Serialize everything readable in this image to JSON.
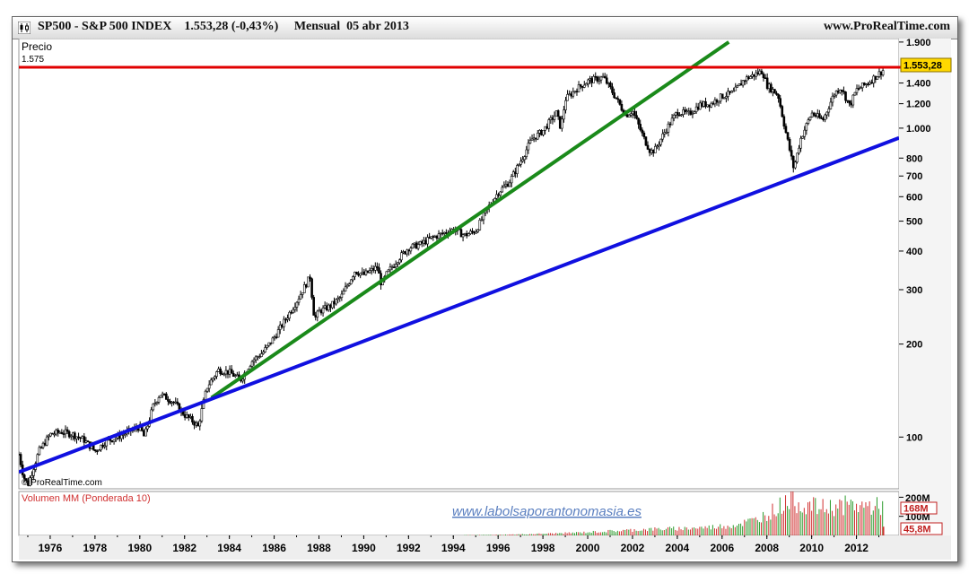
{
  "header": {
    "title": "SP500 - S&P 500 INDEX    1.553,28 (-0,43%)     Mensual  05 abr 2013",
    "site": "www.ProRealTime.com"
  },
  "price_panel": {
    "label": "Precio",
    "ref_value_label": "1.575",
    "last_label": "1.553,28",
    "credit": "© ProRealTime.com",
    "watermark": "www.labolsaporantonomasia.es"
  },
  "volume_panel": {
    "label": "Volumen MM (Ponderada 10)",
    "axis_labels": [
      "200M",
      "100M"
    ],
    "value_badges": [
      {
        "text": "168M",
        "value_millions": 168
      },
      {
        "text": "45,8M",
        "value_millions": 45.8
      }
    ]
  },
  "colors": {
    "red_line": "#e00000",
    "green_trend": "#1a8a1a",
    "blue_trend": "#1010e0",
    "price": "#000000",
    "last_badge": "#ffd800"
  },
  "chart_data": [
    {
      "type": "line",
      "title": "SP500 - S&P 500 INDEX",
      "frequency": "Mensual",
      "y_scale": "log",
      "ylim": [
        68,
        1950
      ],
      "xlim": [
        1974.6,
        2013.9
      ],
      "yticks": [
        100,
        200,
        300,
        400,
        500,
        600,
        700,
        800,
        1000,
        1200,
        1400,
        1900
      ],
      "ytick_labels": [
        "100",
        "200",
        "300",
        "400",
        "500",
        "600",
        "700",
        "800",
        "1.000",
        "1.200",
        "1.400",
        "1.900"
      ],
      "xticks": [
        1976,
        1978,
        1980,
        1982,
        1984,
        1986,
        1988,
        1990,
        1992,
        1994,
        1996,
        1998,
        2000,
        2002,
        2004,
        2006,
        2008,
        2010,
        2012
      ],
      "series": [
        {
          "x": [
            1974.6,
            1974.8,
            1975.0,
            1975.5,
            1976.0,
            1976.5,
            1977.0,
            1977.5,
            1978.0,
            1978.5,
            1979.0,
            1979.5,
            1980.0,
            1980.2,
            1980.6,
            1980.9,
            1981.5,
            1982.0,
            1982.4,
            1982.6,
            1983.0,
            1983.5,
            1984.0,
            1984.5,
            1985.0,
            1985.5,
            1986.0,
            1986.5,
            1987.0,
            1987.6,
            1987.8,
            1988.0,
            1988.5,
            1989.0,
            1989.6,
            1990.0,
            1990.6,
            1990.8,
            1991.0,
            1991.5,
            1992.0,
            1992.5,
            1993.0,
            1993.5,
            1994.0,
            1994.5,
            1995.0,
            1995.5,
            1996.0,
            1996.5,
            1997.0,
            1997.5,
            1998.0,
            1998.6,
            1998.8,
            1999.0,
            1999.5,
            2000.0,
            2000.7,
            2001.0,
            2001.7,
            2002.0,
            2002.5,
            2002.8,
            2003.0,
            2003.5,
            2004.0,
            2004.5,
            2005.0,
            2005.5,
            2006.0,
            2006.5,
            2007.0,
            2007.8,
            2008.0,
            2008.5,
            2008.9,
            2009.2,
            2009.5,
            2010.0,
            2010.5,
            2011.0,
            2011.3,
            2011.7,
            2012.0,
            2012.5,
            2013.0,
            2013.25
          ],
          "y": [
            88,
            75,
            70,
            90,
            102,
            104,
            102,
            98,
            90,
            97,
            100,
            104,
            108,
            100,
            126,
            138,
            130,
            118,
            112,
            108,
            145,
            165,
            162,
            153,
            176,
            188,
            210,
            240,
            275,
            330,
            240,
            255,
            265,
            285,
            345,
            335,
            355,
            310,
            335,
            375,
            410,
            420,
            440,
            455,
            470,
            450,
            465,
            545,
            620,
            670,
            780,
            920,
            980,
            1120,
            1000,
            1240,
            1340,
            1420,
            1460,
            1350,
            1100,
            1140,
            930,
            840,
            850,
            990,
            1130,
            1110,
            1190,
            1200,
            1270,
            1300,
            1440,
            1530,
            1380,
            1280,
            930,
            740,
            920,
            1120,
            1060,
            1290,
            1360,
            1180,
            1330,
            1400,
            1500,
            1553
          ]
        }
      ],
      "reference_lines": [
        {
          "name": "resistance",
          "y": 1575,
          "color": "#e00000"
        }
      ],
      "trendlines": [
        {
          "color": "#1a8a1a",
          "x": [
            1983.2,
            2006.3
          ],
          "y": [
            134,
            1900
          ]
        },
        {
          "color": "#1010e0",
          "x": [
            1974.6,
            2013.9
          ],
          "y": [
            77,
            930
          ]
        }
      ],
      "last_value": 1553.28
    },
    {
      "type": "bar",
      "title": "Volumen MM (Ponderada 10)",
      "units": "millions",
      "ylim": [
        0,
        230
      ],
      "yticks": [
        100,
        200
      ],
      "x": [
        1994.5,
        1995.5,
        1996.5,
        1997.5,
        1998.5,
        1999.5,
        2000.5,
        2001.5,
        2002.5,
        2003.5,
        2004.5,
        2005.5,
        2006.5,
        2007.5,
        2008.5,
        2009.0,
        2009.5,
        2010.5,
        2011.5,
        2012.5,
        2013.2
      ],
      "values": [
        2,
        3,
        5,
        8,
        12,
        16,
        22,
        28,
        35,
        38,
        42,
        48,
        60,
        90,
        160,
        220,
        180,
        160,
        175,
        170,
        168
      ],
      "ma_last": 168,
      "last_value": 45.8
    }
  ]
}
